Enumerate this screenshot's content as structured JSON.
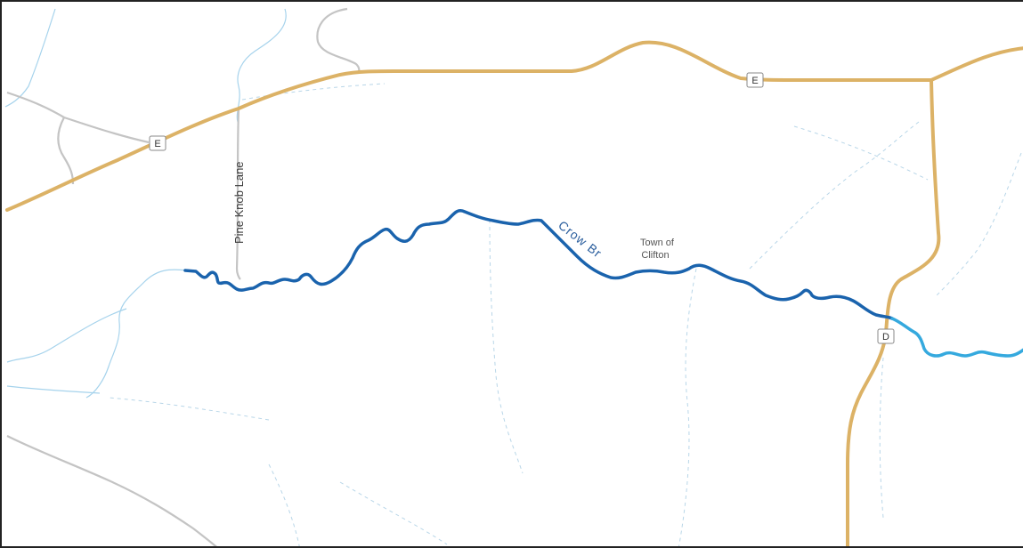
{
  "map": {
    "road_label_pine_knob": "Pine Knob Lane",
    "stream_label": "Crow Br",
    "town_label_line1": "Town of",
    "town_label_line2": "Clifton",
    "route_shield_e1": "E",
    "route_shield_e2": "E",
    "route_shield_d": "D"
  },
  "colors": {
    "highway": "#dcb266",
    "stream_main": "#1a63ad",
    "stream_secondary": "#35a9de",
    "minor_water": "#a6d3ec",
    "minor_road": "#bfbfbf",
    "trail": "#b8d6e8",
    "label_text": "#3a3a3a",
    "stream_label_text": "#2c5f9e"
  }
}
